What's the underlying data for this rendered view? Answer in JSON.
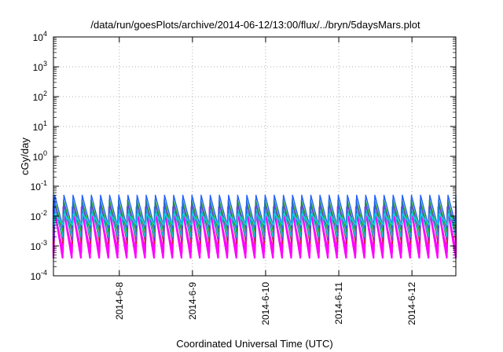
{
  "chart_data": {
    "type": "line",
    "title": "/data/run/goesPlots/archive/2014-06-12/13:00/flux/../bryn/5daysMars.plot",
    "xlabel": "Coordinated Universal Time (UTC)",
    "ylabel": "cGy/day",
    "y_scale": "log",
    "ylim_exp": [
      -4,
      4
    ],
    "y_tick_exponents": [
      "-4",
      "-3",
      "-2",
      "-1",
      "0",
      "1",
      "2",
      "3",
      "4"
    ],
    "y_tick_base": "10",
    "x_range_days": [
      7.1,
      12.6
    ],
    "x_ticks": [
      {
        "day": 8,
        "label": "2014-6-8"
      },
      {
        "day": 9,
        "label": "2014-6-9"
      },
      {
        "day": 10,
        "label": "2014-6-10"
      },
      {
        "day": 11,
        "label": "2014-6-11"
      },
      {
        "day": 12,
        "label": "2014-6-12"
      }
    ],
    "grid": true,
    "sawtooth_period_days": 0.125,
    "series": [
      {
        "color": "#ff00ff",
        "peak": 0.02,
        "trough": 0.0004
      },
      {
        "color": "#ff00ff",
        "peak": 0.015,
        "trough": 0.0006
      },
      {
        "color": "#e0201a",
        "peak": 0.03,
        "trough": 0.0012
      },
      {
        "color": "#8a2be2",
        "peak": 0.025,
        "trough": 0.0015
      },
      {
        "color": "#00c8c8",
        "peak": 0.02,
        "trough": 0.002
      },
      {
        "color": "#22aa22",
        "peak": 0.035,
        "trough": 0.003
      },
      {
        "color": "#2060ff",
        "peak": 0.05,
        "trough": 0.004
      },
      {
        "color": "#00dddd",
        "peak": 0.012,
        "trough": 0.005
      }
    ]
  }
}
